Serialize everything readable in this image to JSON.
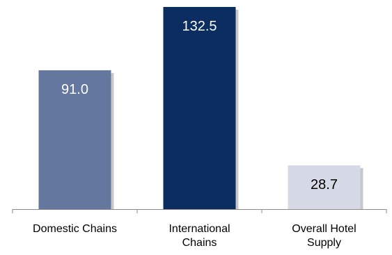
{
  "chart_data": {
    "type": "bar",
    "categories": [
      [
        "Domestic Chains"
      ],
      [
        "International",
        "Chains"
      ],
      [
        "Overall Hotel",
        "Supply"
      ]
    ],
    "values": [
      91.0,
      132.5,
      28.7
    ],
    "value_labels": [
      "91.0",
      "132.5",
      "28.7"
    ],
    "title": "",
    "xlabel": "",
    "ylabel": "",
    "ylim": [
      0,
      140
    ],
    "grid": false,
    "legend": "none",
    "colors": {
      "bars": [
        "#63779F",
        "#0B2D5F",
        "#D6DAE7"
      ],
      "labels": [
        "#FFFFFF",
        "#FFFFFF",
        "#000000"
      ],
      "axis": "#8A8A8A",
      "shadow": "#C8C8C8"
    }
  }
}
